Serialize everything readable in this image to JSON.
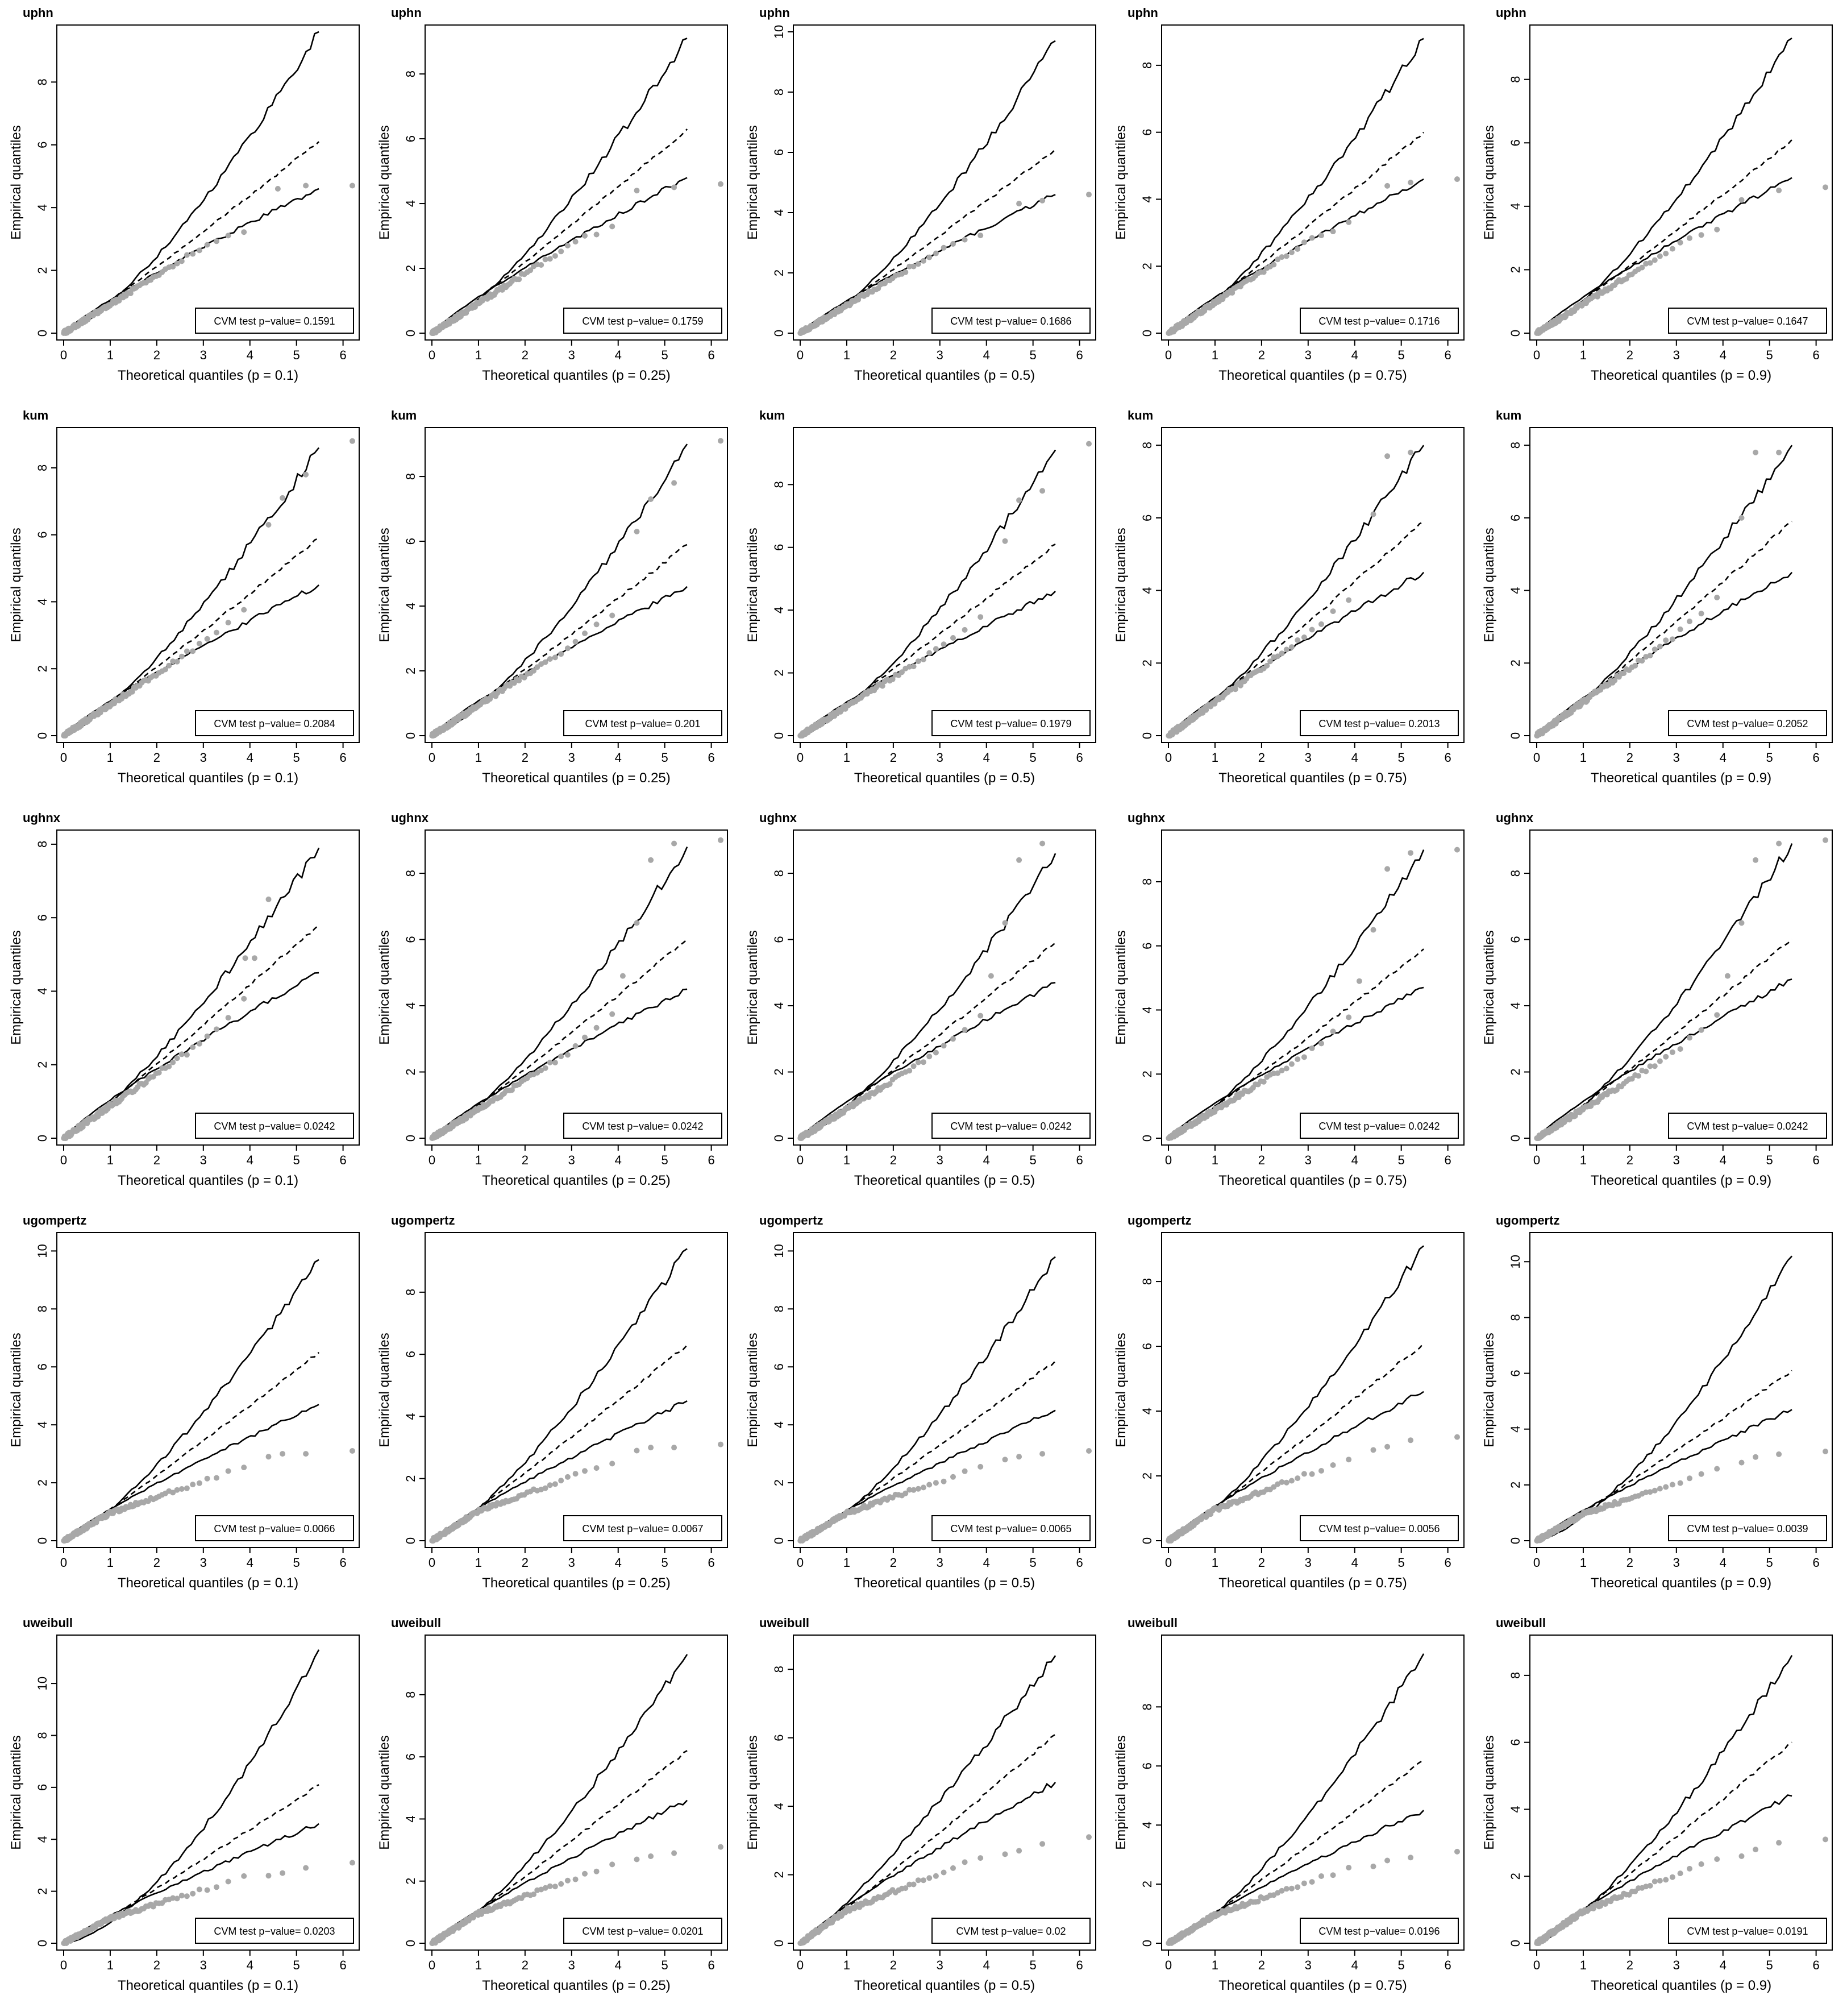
{
  "chart_data": {
    "type": "scatter",
    "layout": "5x5 grid of QQ plots",
    "row_titles": [
      "uphn",
      "kum",
      "ughnx",
      "ugompertz",
      "uweibull"
    ],
    "col_xlabels": [
      "Theoretical quantiles (p = 0.1)",
      "Theoretical quantiles (p = 0.25)",
      "Theoretical quantiles (p = 0.5)",
      "Theoretical quantiles (p = 0.75)",
      "Theoretical quantiles (p = 0.9)"
    ],
    "ylabel": "Empirical quantiles",
    "legend_prefix": "CVM test p−value= ",
    "legend_position": "bottom-right",
    "xlim": [
      0,
      6.2
    ],
    "xticks": [
      "0",
      "1",
      "2",
      "3",
      "4",
      "5",
      "6"
    ],
    "colors": {
      "points": "#a8a8a8",
      "lines": "#000000"
    },
    "point_style": "light grey filled circles (empirical quantiles)",
    "line_style": "solid lines = envelope bounds, dashed line = median",
    "panels": [
      [
        {
          "title": "uphn",
          "xlabel": "Theoretical quantiles (p = 0.1)",
          "pvalue": "0.1591",
          "ylim": [
            0,
            9.6
          ],
          "yticks": [
            "0",
            "2",
            "4",
            "6",
            "8"
          ],
          "upper_end": 9.6,
          "median_end": 6.1,
          "lower_end": 4.6,
          "upper_pow": 1.35,
          "point_profile": "near",
          "tail_points": [
            [
              4.6,
              4.6
            ],
            [
              5.2,
              4.7
            ],
            [
              6.2,
              4.7
            ]
          ]
        },
        {
          "title": "uphn",
          "xlabel": "Theoretical quantiles (p = 0.25)",
          "pvalue": "0.1759",
          "ylim": [
            0,
            9.3
          ],
          "yticks": [
            "0",
            "2",
            "4",
            "6",
            "8"
          ],
          "upper_end": 9.1,
          "median_end": 6.3,
          "lower_end": 4.8,
          "upper_pow": 1.3,
          "point_profile": "near",
          "tail_points": [
            [
              4.4,
              4.4
            ],
            [
              5.2,
              4.5
            ],
            [
              6.2,
              4.6
            ]
          ]
        },
        {
          "title": "uphn",
          "xlabel": "Theoretical quantiles (p = 0.5)",
          "pvalue": "0.1686",
          "ylim": [
            0,
            10
          ],
          "yticks": [
            "0",
            "2",
            "4",
            "6",
            "8",
            "10"
          ],
          "upper_end": 9.7,
          "median_end": 6.1,
          "lower_end": 4.6,
          "upper_pow": 1.35,
          "point_profile": "near",
          "tail_points": [
            [
              4.7,
              4.3
            ],
            [
              5.2,
              4.4
            ],
            [
              6.2,
              4.6
            ]
          ]
        },
        {
          "title": "uphn",
          "xlabel": "Theoretical quantiles (p = 0.75)",
          "pvalue": "0.1716",
          "ylim": [
            0,
            9.0
          ],
          "yticks": [
            "0",
            "2",
            "4",
            "6",
            "8"
          ],
          "upper_end": 8.8,
          "median_end": 6.0,
          "lower_end": 4.6,
          "upper_pow": 1.3,
          "point_profile": "near",
          "tail_points": [
            [
              4.7,
              4.4
            ],
            [
              5.2,
              4.5
            ],
            [
              6.2,
              4.6
            ]
          ]
        },
        {
          "title": "uphn",
          "xlabel": "Theoretical quantiles (p = 0.9)",
          "pvalue": "0.1647",
          "ylim": [
            0,
            9.5
          ],
          "yticks": [
            "0",
            "2",
            "4",
            "6",
            "8"
          ],
          "upper_end": 9.3,
          "median_end": 6.1,
          "lower_end": 4.9,
          "upper_pow": 1.3,
          "point_profile": "near",
          "tail_points": [
            [
              4.4,
              4.2
            ],
            [
              5.2,
              4.5
            ],
            [
              6.2,
              4.6
            ]
          ]
        }
      ],
      [
        {
          "title": "kum",
          "xlabel": "Theoretical quantiles (p = 0.1)",
          "pvalue": "0.2084",
          "ylim": [
            0,
            9.0
          ],
          "yticks": [
            "0",
            "2",
            "4",
            "6",
            "8"
          ],
          "upper_end": 8.6,
          "median_end": 5.9,
          "lower_end": 4.5,
          "upper_pow": 1.3,
          "point_profile": "high",
          "tail_points": [
            [
              4.4,
              6.3
            ],
            [
              4.7,
              7.1
            ],
            [
              5.2,
              7.8
            ],
            [
              6.2,
              8.8
            ]
          ]
        },
        {
          "title": "kum",
          "xlabel": "Theoretical quantiles (p = 0.25)",
          "pvalue": "0.201",
          "ylim": [
            0,
            9.3
          ],
          "yticks": [
            "0",
            "2",
            "4",
            "6",
            "8"
          ],
          "upper_end": 9.0,
          "median_end": 5.9,
          "lower_end": 4.6,
          "upper_pow": 1.35,
          "point_profile": "high",
          "tail_points": [
            [
              4.4,
              6.3
            ],
            [
              4.7,
              7.3
            ],
            [
              5.2,
              7.8
            ],
            [
              6.2,
              9.1
            ]
          ]
        },
        {
          "title": "kum",
          "xlabel": "Theoretical quantiles (p = 0.5)",
          "pvalue": "0.1979",
          "ylim": [
            0,
            9.6
          ],
          "yticks": [
            "0",
            "2",
            "4",
            "6",
            "8"
          ],
          "upper_end": 9.1,
          "median_end": 6.1,
          "lower_end": 4.6,
          "upper_pow": 1.35,
          "point_profile": "high",
          "tail_points": [
            [
              4.4,
              6.2
            ],
            [
              4.7,
              7.5
            ],
            [
              5.2,
              7.8
            ],
            [
              6.2,
              9.3
            ]
          ]
        },
        {
          "title": "kum",
          "xlabel": "Theoretical quantiles (p = 0.75)",
          "pvalue": "0.2013",
          "ylim": [
            0,
            8.3
          ],
          "yticks": [
            "0",
            "2",
            "4",
            "6",
            "8"
          ],
          "upper_end": 8.0,
          "median_end": 5.9,
          "lower_end": 4.5,
          "upper_pow": 1.25,
          "point_profile": "high",
          "tail_points": [
            [
              4.4,
              6.1
            ],
            [
              4.7,
              7.7
            ],
            [
              5.2,
              7.8
            ]
          ]
        },
        {
          "title": "kum",
          "xlabel": "Theoretical quantiles (p = 0.9)",
          "pvalue": "0.2052",
          "ylim": [
            0,
            8.3
          ],
          "yticks": [
            "0",
            "2",
            "4",
            "6",
            "8"
          ],
          "upper_end": 8.0,
          "median_end": 5.9,
          "lower_end": 4.5,
          "upper_pow": 1.25,
          "point_profile": "high",
          "tail_points": [
            [
              4.4,
              6.0
            ],
            [
              4.7,
              7.8
            ],
            [
              5.2,
              7.8
            ]
          ]
        }
      ],
      [
        {
          "title": "ughnx",
          "xlabel": "Theoretical quantiles (p = 0.1)",
          "pvalue": "0.0242",
          "ylim": [
            0,
            8.2
          ],
          "yticks": [
            "0",
            "2",
            "4",
            "6",
            "8"
          ],
          "upper_end": 7.9,
          "median_end": 5.8,
          "lower_end": 4.5,
          "upper_pow": 1.25,
          "point_profile": "xhigh",
          "tail_points": [
            [
              3.9,
              4.9
            ],
            [
              4.1,
              4.9
            ],
            [
              4.4,
              6.5
            ]
          ]
        },
        {
          "title": "ughnx",
          "xlabel": "Theoretical quantiles (p = 0.25)",
          "pvalue": "0.0242",
          "ylim": [
            0,
            9.1
          ],
          "yticks": [
            "0",
            "2",
            "4",
            "6",
            "8"
          ],
          "upper_end": 8.8,
          "median_end": 6.0,
          "lower_end": 4.5,
          "upper_pow": 1.3,
          "point_profile": "xhigh",
          "tail_points": [
            [
              4.1,
              4.9
            ],
            [
              4.4,
              6.5
            ],
            [
              4.7,
              8.4
            ],
            [
              5.2,
              8.9
            ],
            [
              6.2,
              9.0
            ]
          ]
        },
        {
          "title": "ughnx",
          "xlabel": "Theoretical quantiles (p = 0.5)",
          "pvalue": "0.0242",
          "ylim": [
            0,
            9.1
          ],
          "yticks": [
            "0",
            "2",
            "4",
            "6",
            "8"
          ],
          "upper_end": 8.6,
          "median_end": 5.9,
          "lower_end": 4.7,
          "upper_pow": 1.3,
          "point_profile": "xhigh",
          "tail_points": [
            [
              4.1,
              4.9
            ],
            [
              4.4,
              6.5
            ],
            [
              4.7,
              8.4
            ],
            [
              5.2,
              8.9
            ]
          ]
        },
        {
          "title": "ughnx",
          "xlabel": "Theoretical quantiles (p = 0.75)",
          "pvalue": "0.0242",
          "ylim": [
            0,
            9.4
          ],
          "yticks": [
            "0",
            "2",
            "4",
            "6",
            "8"
          ],
          "upper_end": 9.0,
          "median_end": 5.9,
          "lower_end": 4.7,
          "upper_pow": 1.3,
          "point_profile": "xhigh",
          "tail_points": [
            [
              4.1,
              4.9
            ],
            [
              4.4,
              6.5
            ],
            [
              4.7,
              8.4
            ],
            [
              5.2,
              8.9
            ],
            [
              6.2,
              9.0
            ]
          ]
        },
        {
          "title": "ughnx",
          "xlabel": "Theoretical quantiles (p = 0.9)",
          "pvalue": "0.0242",
          "ylim": [
            0,
            9.1
          ],
          "yticks": [
            "0",
            "2",
            "4",
            "6",
            "8"
          ],
          "upper_end": 8.9,
          "median_end": 6.0,
          "lower_end": 4.8,
          "upper_pow": 1.3,
          "point_profile": "xhigh",
          "tail_points": [
            [
              4.1,
              4.9
            ],
            [
              4.4,
              6.5
            ],
            [
              4.7,
              8.4
            ],
            [
              5.2,
              8.9
            ],
            [
              6.2,
              9.0
            ]
          ]
        }
      ],
      [
        {
          "title": "ugompertz",
          "xlabel": "Theoretical quantiles (p = 0.1)",
          "pvalue": "0.0066",
          "ylim": [
            0,
            10.4
          ],
          "yticks": [
            "0",
            "2",
            "4",
            "6",
            "8",
            "10"
          ],
          "upper_end": 9.7,
          "median_end": 6.5,
          "lower_end": 4.7,
          "upper_pow": 1.3,
          "point_profile": "low",
          "tail_points": [
            [
              4.4,
              2.9
            ],
            [
              4.7,
              3.0
            ],
            [
              5.2,
              3.0
            ],
            [
              6.2,
              3.1
            ]
          ]
        },
        {
          "title": "ugompertz",
          "xlabel": "Theoretical quantiles (p = 0.25)",
          "pvalue": "0.0067",
          "ylim": [
            0,
            9.7
          ],
          "yticks": [
            "0",
            "2",
            "4",
            "6",
            "8"
          ],
          "upper_end": 9.4,
          "median_end": 6.3,
          "lower_end": 4.5,
          "upper_pow": 1.3,
          "point_profile": "low",
          "tail_points": [
            [
              4.4,
              2.9
            ],
            [
              4.7,
              3.0
            ],
            [
              5.2,
              3.0
            ],
            [
              6.2,
              3.1
            ]
          ]
        },
        {
          "title": "ugompertz",
          "xlabel": "Theoretical quantiles (p = 0.5)",
          "pvalue": "0.0065",
          "ylim": [
            0,
            10.4
          ],
          "yticks": [
            "0",
            "2",
            "4",
            "6",
            "8",
            "10"
          ],
          "upper_end": 9.8,
          "median_end": 6.2,
          "lower_end": 4.5,
          "upper_pow": 1.35,
          "point_profile": "low",
          "tail_points": [
            [
              4.4,
              2.8
            ],
            [
              4.7,
              2.9
            ],
            [
              5.2,
              3.0
            ],
            [
              6.2,
              3.1
            ]
          ]
        },
        {
          "title": "ugompertz",
          "xlabel": "Theoretical quantiles (p = 0.75)",
          "pvalue": "0.0056",
          "ylim": [
            0,
            9.3
          ],
          "yticks": [
            "0",
            "2",
            "4",
            "6",
            "8"
          ],
          "upper_end": 9.1,
          "median_end": 6.1,
          "lower_end": 4.6,
          "upper_pow": 1.3,
          "point_profile": "low",
          "tail_points": [
            [
              4.4,
              2.8
            ],
            [
              4.7,
              2.9
            ],
            [
              5.2,
              3.1
            ],
            [
              6.2,
              3.2
            ]
          ]
        },
        {
          "title": "ugompertz",
          "xlabel": "Theoretical quantiles (p = 0.9)",
          "pvalue": "0.0039",
          "ylim": [
            0,
            10.8
          ],
          "yticks": [
            "0",
            "2",
            "4",
            "6",
            "8",
            "10"
          ],
          "upper_end": 10.2,
          "median_end": 6.1,
          "lower_end": 4.7,
          "upper_pow": 1.45,
          "point_profile": "low",
          "tail_points": [
            [
              4.4,
              2.8
            ],
            [
              4.7,
              3.0
            ],
            [
              5.2,
              3.1
            ],
            [
              6.2,
              3.2
            ]
          ]
        }
      ],
      [
        {
          "title": "uweibull",
          "xlabel": "Theoretical quantiles (p = 0.1)",
          "pvalue": "0.0203",
          "ylim": [
            0,
            11.6
          ],
          "yticks": [
            "0",
            "2",
            "4",
            "6",
            "8",
            "10"
          ],
          "upper_end": 11.3,
          "median_end": 6.1,
          "lower_end": 4.6,
          "upper_pow": 1.55,
          "point_profile": "low",
          "tail_points": [
            [
              4.4,
              2.6
            ],
            [
              4.7,
              2.7
            ],
            [
              5.2,
              2.9
            ],
            [
              6.2,
              3.1
            ]
          ]
        },
        {
          "title": "uweibull",
          "xlabel": "Theoretical quantiles (p = 0.25)",
          "pvalue": "0.0201",
          "ylim": [
            0,
            9.7
          ],
          "yticks": [
            "0",
            "2",
            "4",
            "6",
            "8"
          ],
          "upper_end": 9.3,
          "median_end": 6.2,
          "lower_end": 4.6,
          "upper_pow": 1.3,
          "point_profile": "low",
          "tail_points": [
            [
              4.4,
              2.7
            ],
            [
              4.7,
              2.8
            ],
            [
              5.2,
              2.9
            ],
            [
              6.2,
              3.1
            ]
          ]
        },
        {
          "title": "uweibull",
          "xlabel": "Theoretical quantiles (p = 0.5)",
          "pvalue": "0.02",
          "ylim": [
            0,
            8.8
          ],
          "yticks": [
            "0",
            "2",
            "4",
            "6",
            "8"
          ],
          "upper_end": 8.4,
          "median_end": 6.1,
          "lower_end": 4.7,
          "upper_pow": 1.15,
          "point_profile": "low",
          "tail_points": [
            [
              4.4,
              2.6
            ],
            [
              4.7,
              2.7
            ],
            [
              5.2,
              2.9
            ],
            [
              6.2,
              3.1
            ]
          ]
        },
        {
          "title": "uweibull",
          "xlabel": "Theoretical quantiles (p = 0.75)",
          "pvalue": "0.0196",
          "ylim": [
            0,
            10.2
          ],
          "yticks": [
            "0",
            "2",
            "4",
            "6",
            "8"
          ],
          "upper_end": 9.8,
          "median_end": 6.2,
          "lower_end": 4.5,
          "upper_pow": 1.35,
          "point_profile": "low",
          "tail_points": [
            [
              4.4,
              2.6
            ],
            [
              4.7,
              2.8
            ],
            [
              5.2,
              2.9
            ],
            [
              6.2,
              3.1
            ]
          ]
        },
        {
          "title": "uweibull",
          "xlabel": "Theoretical quantiles (p = 0.9)",
          "pvalue": "0.0191",
          "ylim": [
            0,
            9.0
          ],
          "yticks": [
            "0",
            "2",
            "4",
            "6",
            "8"
          ],
          "upper_end": 8.6,
          "median_end": 6.0,
          "lower_end": 4.4,
          "upper_pow": 1.3,
          "point_profile": "low",
          "tail_points": [
            [
              4.4,
              2.6
            ],
            [
              4.7,
              2.8
            ],
            [
              5.2,
              3.0
            ],
            [
              6.2,
              3.1
            ]
          ]
        }
      ]
    ]
  }
}
